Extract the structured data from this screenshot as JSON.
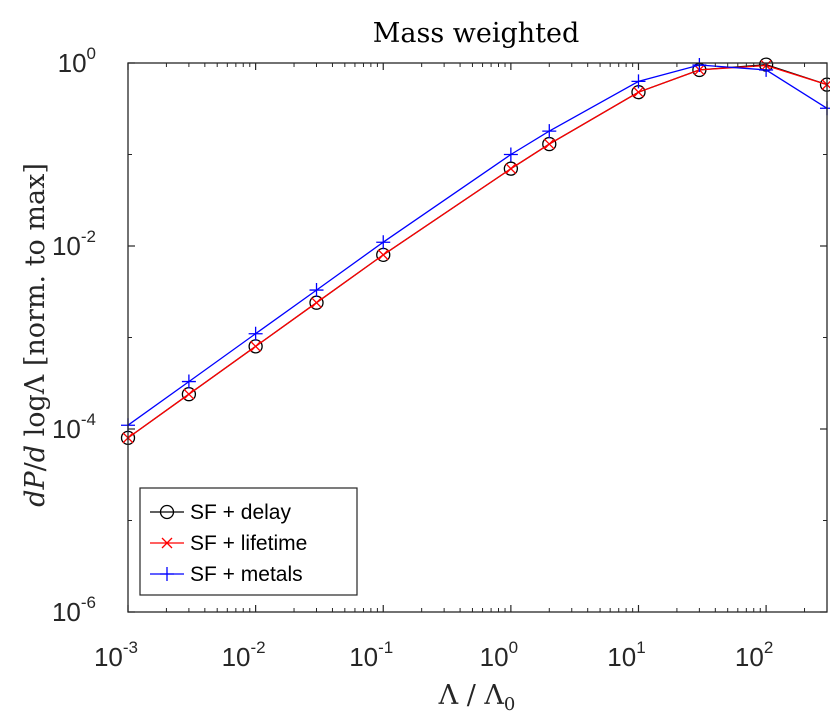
{
  "chart_data": {
    "type": "line",
    "title": "Mass weighted",
    "xlabel": "Λ / Λ₀",
    "ylabel": "dP/d logΛ [norm. to max]",
    "xscale": "log",
    "yscale": "log",
    "xlim": [
      0.001,
      300
    ],
    "ylim": [
      1e-06,
      1
    ],
    "grid": false,
    "legend_position": "bottom-left",
    "x_ticks": [
      {
        "base": "10",
        "exp": "-3",
        "value": 0.001
      },
      {
        "base": "10",
        "exp": "-2",
        "value": 0.01
      },
      {
        "base": "10",
        "exp": "-1",
        "value": 0.1
      },
      {
        "base": "10",
        "exp": "0",
        "value": 1
      },
      {
        "base": "10",
        "exp": "1",
        "value": 10
      },
      {
        "base": "10",
        "exp": "2",
        "value": 100
      }
    ],
    "y_ticks": [
      {
        "base": "10",
        "exp": "-6",
        "value": 1e-06
      },
      {
        "base": "10",
        "exp": "-4",
        "value": 0.0001
      },
      {
        "base": "10",
        "exp": "-2",
        "value": 0.01
      },
      {
        "base": "10",
        "exp": "0",
        "value": 1
      }
    ],
    "x": [
      0.001,
      0.003,
      0.01,
      0.03,
      0.1,
      1,
      2,
      10,
      30,
      100,
      300
    ],
    "series": [
      {
        "name": "SF + delay",
        "color": "#000000",
        "marker": "circle",
        "values": [
          8e-05,
          0.00024,
          0.0008,
          0.0024,
          0.008,
          0.07,
          0.13,
          0.48,
          0.84,
          0.96,
          0.58
        ]
      },
      {
        "name": "SF + lifetime",
        "color": "#ff0000",
        "marker": "x",
        "values": [
          8e-05,
          0.00024,
          0.0008,
          0.0024,
          0.008,
          0.07,
          0.13,
          0.48,
          0.84,
          0.94,
          0.58
        ]
      },
      {
        "name": "SF + metals",
        "color": "#0000ff",
        "marker": "plus",
        "values": [
          0.00011,
          0.00033,
          0.0011,
          0.0033,
          0.011,
          0.1,
          0.18,
          0.63,
          0.95,
          0.84,
          0.32
        ]
      }
    ]
  }
}
